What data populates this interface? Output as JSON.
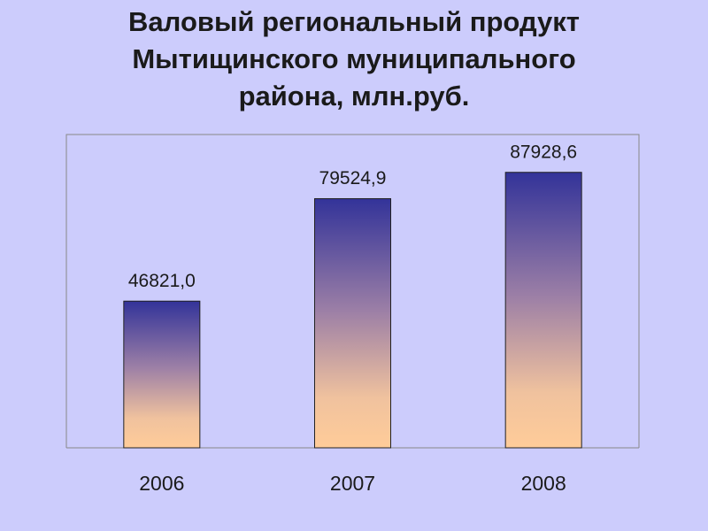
{
  "chart_data": {
    "type": "bar",
    "title": "Валовый региональный продукт\nМытищинского муниципального\nрайона, млн.руб.",
    "categories": [
      "2006",
      "2007",
      "2008"
    ],
    "values": [
      46821.0,
      79524.9,
      87928.6
    ],
    "value_labels": [
      "46821,0",
      "79524,9",
      "87928,6"
    ],
    "ylim": [
      0,
      100000
    ]
  }
}
